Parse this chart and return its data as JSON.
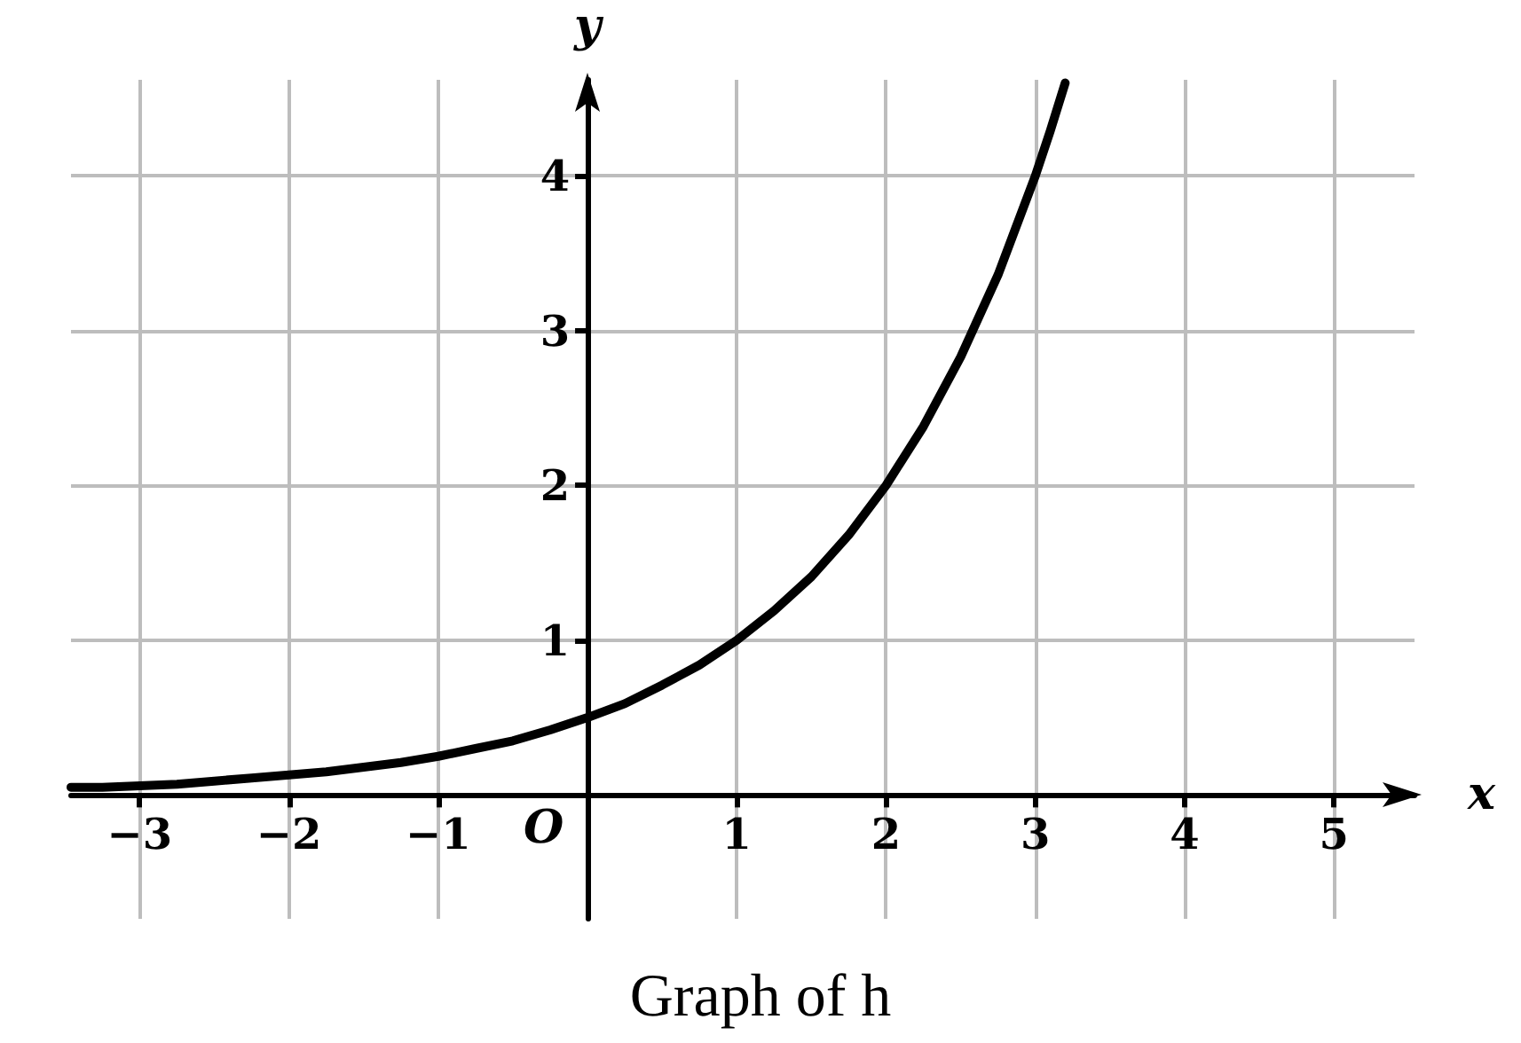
{
  "chart_data": {
    "type": "line",
    "title": "Graph of h",
    "xlabel": "x",
    "ylabel": "y",
    "annotations": [
      "O"
    ],
    "series": [
      {
        "color": "#000000",
        "x": [
          -3.46,
          -3.25,
          -3,
          -2.75,
          -2.5,
          -2.25,
          -2,
          -1.75,
          -1.5,
          -1.25,
          -1,
          -0.75,
          -0.5,
          -0.25,
          0,
          0.25,
          0.5,
          0.75,
          1,
          1.25,
          1.5,
          1.75,
          2,
          2.25,
          2.5,
          2.75,
          3,
          3.1,
          3.2
        ],
        "values": [
          0.05,
          0.05,
          0.06,
          0.07,
          0.09,
          0.11,
          0.13,
          0.15,
          0.18,
          0.21,
          0.25,
          0.3,
          0.35,
          0.42,
          0.5,
          0.59,
          0.71,
          0.84,
          1,
          1.19,
          1.41,
          1.68,
          2,
          2.38,
          2.83,
          3.36,
          4,
          4.29,
          4.6
        ]
      }
    ],
    "xlim": [
      -3.46,
      5.54
    ],
    "ylim": [
      -0.8,
      4.62
    ],
    "xticks": [
      -3,
      -2,
      -1,
      1,
      2,
      3,
      4,
      5
    ],
    "yticks": [
      1,
      2,
      3,
      4
    ],
    "grid": true,
    "marker": "none",
    "line_style": "solid"
  }
}
